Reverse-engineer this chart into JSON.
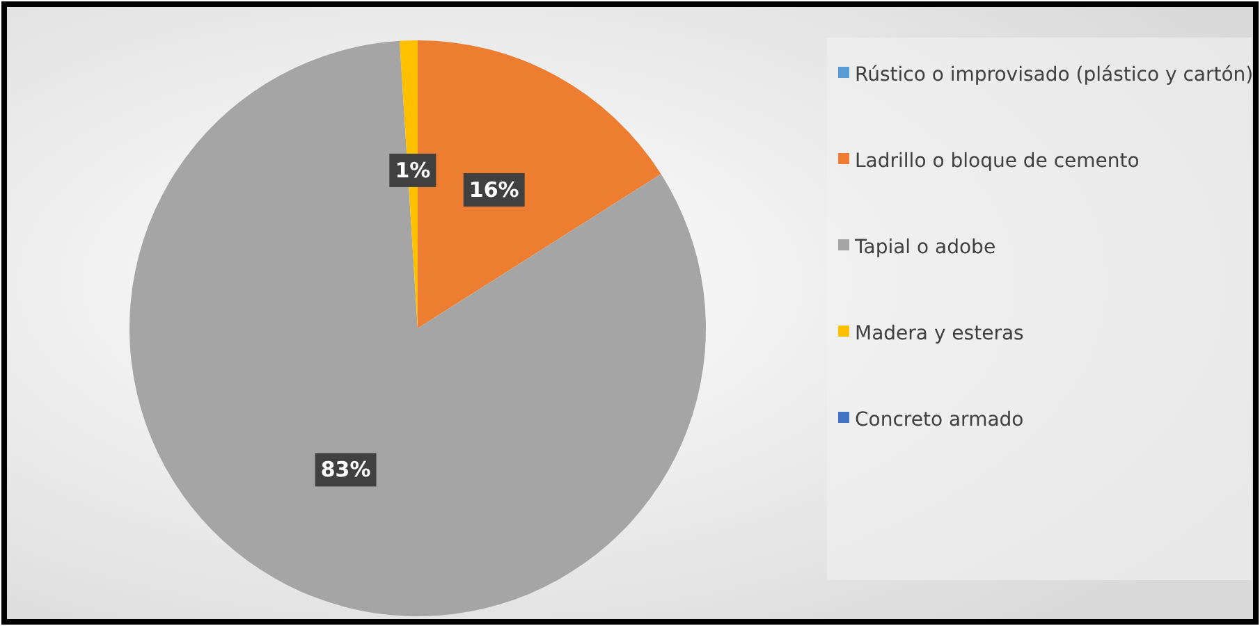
{
  "chart_data": {
    "type": "pie",
    "categories": [
      "Rústico o improvisado (plástico y cartón)",
      "Ladrillo o bloque de cemento",
      "Tapial o adobe",
      "Madera y esteras",
      "Concreto armado"
    ],
    "values": [
      0,
      16,
      83,
      1,
      0
    ],
    "colors": [
      "#5b9bd5",
      "#ed7d31",
      "#a5a5a5",
      "#ffc000",
      "#4472c4"
    ],
    "value_labels": [
      null,
      "16%",
      "83%",
      "1%",
      null
    ],
    "legend": "right"
  }
}
